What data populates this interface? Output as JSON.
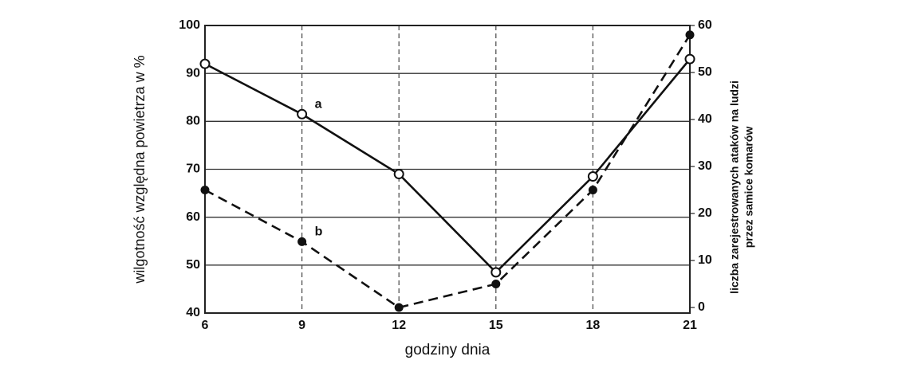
{
  "chart_data": {
    "type": "line",
    "xlabel": "godziny dnia",
    "ylabel": "wilgotność względna powietrza w %",
    "y2label": [
      "liczba zarejestrowanych ataków na ludzi",
      "przez samice komarów"
    ],
    "x": [
      6,
      9,
      12,
      15,
      18,
      21
    ],
    "xlim": [
      6,
      21
    ],
    "xticks": [
      6,
      9,
      12,
      15,
      18,
      21
    ],
    "ylim": [
      40,
      100
    ],
    "yticks": [
      40,
      50,
      60,
      70,
      80,
      90,
      100
    ],
    "y2lim": [
      0,
      60
    ],
    "y2ticks": [
      0,
      10,
      20,
      30,
      40,
      50,
      60
    ],
    "grid": true,
    "series": [
      {
        "name": "a",
        "color": "#111111",
        "style": "solid",
        "marker": "open",
        "values": [
          92,
          81.5,
          69,
          48.5,
          68.5,
          93
        ]
      },
      {
        "name": "b",
        "color": "#111111",
        "style": "dashed",
        "marker": "filled",
        "axis": "y2",
        "values": [
          25,
          14,
          0,
          5,
          25,
          58
        ]
      }
    ]
  }
}
